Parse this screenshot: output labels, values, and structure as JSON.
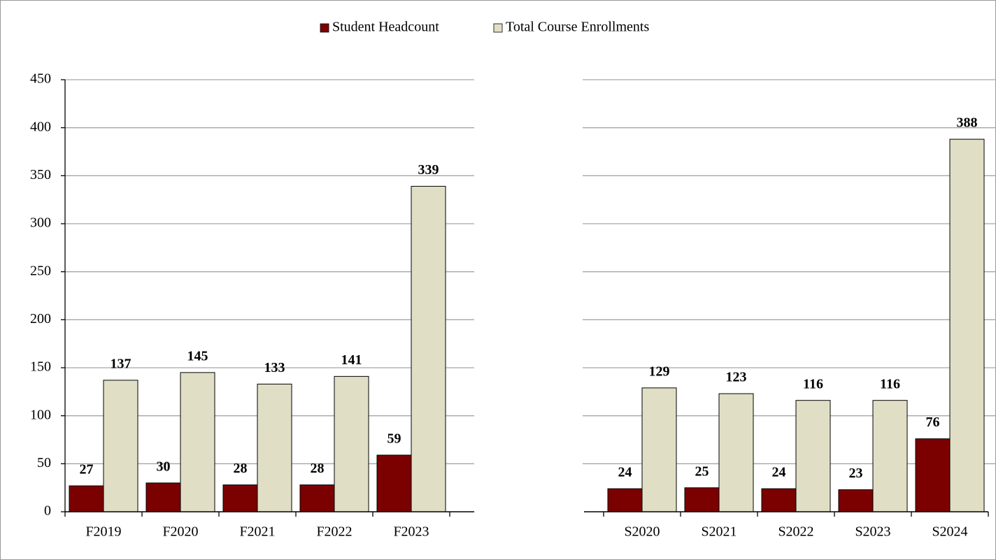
{
  "chart_data": [
    {
      "type": "bar",
      "categories": [
        "F2019",
        "F2020",
        "F2021",
        "F2022",
        "F2023"
      ],
      "series": [
        {
          "name": "Student Headcount",
          "color": "#7b0000",
          "values": [
            27,
            30,
            28,
            28,
            59
          ]
        },
        {
          "name": "Total Course Enrollments",
          "color": "#e0dfc6",
          "values": [
            137,
            145,
            133,
            141,
            339
          ]
        }
      ],
      "ylim": [
        0,
        450
      ],
      "yticks": [
        0,
        50,
        100,
        150,
        200,
        250,
        300,
        350,
        400,
        450
      ],
      "grid": true,
      "legend": "top"
    },
    {
      "type": "bar",
      "categories": [
        "S2020",
        "S2021",
        "S2022",
        "S2023",
        "S2024"
      ],
      "series": [
        {
          "color": "#7b0000",
          "values": [
            24,
            25,
            24,
            23,
            76
          ]
        },
        {
          "color": "#e0dfc6",
          "values": [
            129,
            123,
            116,
            116,
            388
          ]
        }
      ],
      "ylim": [
        0,
        450
      ],
      "yticks": [
        0,
        50,
        100,
        150,
        200,
        250,
        300,
        350,
        400,
        450
      ],
      "grid": true,
      "ytick_labels": false
    }
  ]
}
